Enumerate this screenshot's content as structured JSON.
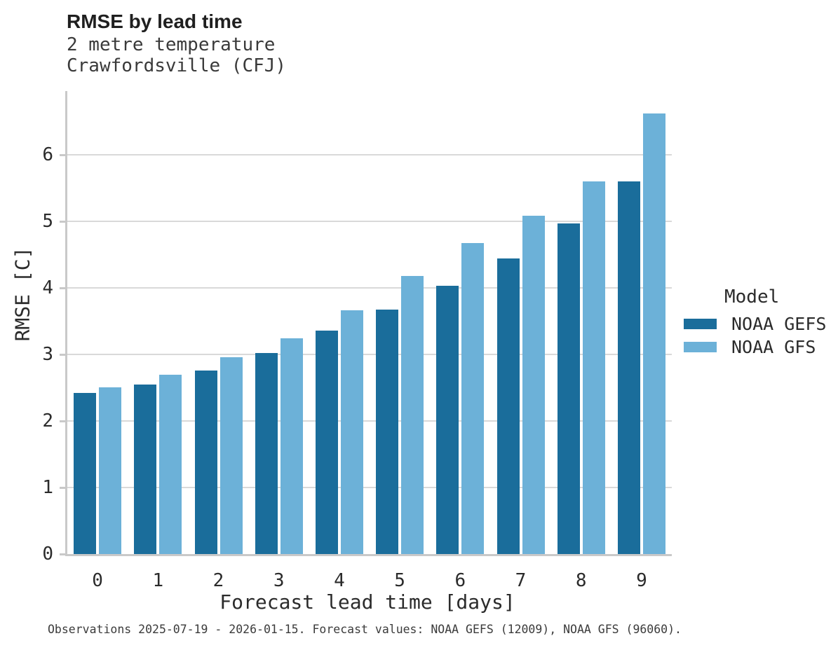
{
  "chart_data": {
    "type": "bar",
    "title": "RMSE by lead time",
    "subtitle": [
      "2 metre temperature",
      "Crawfordsville (CFJ)"
    ],
    "categories": [
      "0",
      "1",
      "2",
      "3",
      "4",
      "5",
      "6",
      "7",
      "8",
      "9"
    ],
    "series": [
      {
        "name": "NOAA GEFS",
        "color": "#1a6d9b",
        "values": [
          2.42,
          2.55,
          2.76,
          3.02,
          3.36,
          3.68,
          4.03,
          4.44,
          4.97,
          5.6
        ]
      },
      {
        "name": "NOAA GFS",
        "color": "#6cb1d8",
        "values": [
          2.51,
          2.7,
          2.96,
          3.24,
          3.66,
          4.18,
          4.68,
          5.09,
          5.6,
          6.62
        ]
      }
    ],
    "xlabel": "Forecast lead time [days]",
    "ylabel": "RMSE [C]",
    "ylim": [
      0,
      6.96
    ],
    "yticks": [
      0,
      1,
      2,
      3,
      4,
      5,
      6
    ],
    "grid": "horizontal",
    "legend_title": "Model",
    "legend_position": "right"
  },
  "legend": {
    "title": "Model",
    "items": [
      {
        "label": "NOAA GEFS",
        "color": "#1a6d9b"
      },
      {
        "label": "NOAA GFS",
        "color": "#6cb1d8"
      }
    ]
  },
  "footer": {
    "caption": "Observations 2025-07-19 - 2026-01-15. Forecast values: NOAA GEFS (12009), NOAA GFS (96060)."
  },
  "colors": {
    "gridline": "#d9d9d9",
    "axis_spine": "#c9c9c9",
    "title_text": "#1f1f1f",
    "tick_text": "#2b2b2b",
    "background": "#ffffff"
  }
}
